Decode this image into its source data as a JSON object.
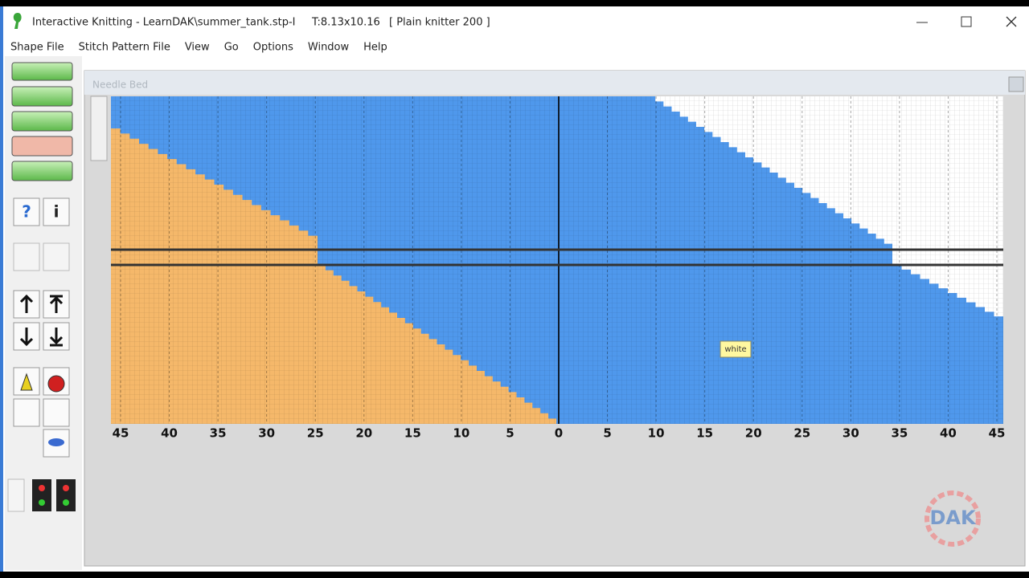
{
  "window": {
    "title": "Interactive Knitting - LearnDAK\\summer_tank.stp-I",
    "size": "T:8.13x10.16",
    "knitter": "[ Plain knitter 200 ]"
  },
  "menu": [
    "Shape File",
    "Stitch Pattern File",
    "View",
    "Go",
    "Options",
    "Window",
    "Help"
  ],
  "toolbar": {
    "help": "?",
    "info": "i"
  },
  "needle_bed": {
    "title": "Needle Bed",
    "scale_labels": [
      "45",
      "40",
      "35",
      "30",
      "25",
      "20",
      "15",
      "10",
      "5",
      "0",
      "5",
      "10",
      "15",
      "20",
      "25",
      "30",
      "35",
      "40",
      "45"
    ],
    "tooltip": "white"
  },
  "logo": "DAK"
}
